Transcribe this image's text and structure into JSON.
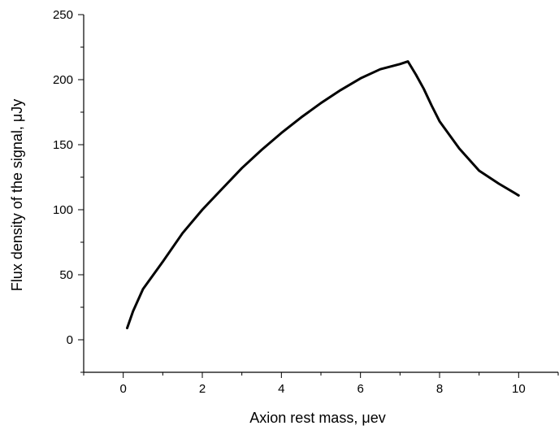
{
  "chart_data": {
    "type": "line",
    "title": "",
    "xlabel": "Axion rest mass, μev",
    "ylabel": "Flux density of the signal, μJy",
    "xlim": [
      -1,
      11
    ],
    "ylim": [
      -25,
      250
    ],
    "x_ticks": [
      0,
      2,
      4,
      6,
      8,
      10
    ],
    "y_ticks": [
      0,
      50,
      100,
      150,
      200,
      250
    ],
    "grid": false,
    "colors": {
      "line": "#000000",
      "axis": "#000000"
    },
    "series": [
      {
        "x": [
          0.1,
          0.25,
          0.5,
          1.0,
          1.5,
          2.0,
          2.5,
          3.0,
          3.5,
          4.0,
          4.5,
          5.0,
          5.5,
          6.0,
          6.5,
          7.0,
          7.2,
          7.4,
          7.6,
          7.8,
          8.0,
          8.5,
          9.0,
          9.5,
          10.0
        ],
        "y": [
          9,
          22,
          39,
          60,
          82,
          100,
          116,
          132,
          146,
          159,
          171,
          182,
          192,
          201,
          208,
          212,
          214,
          204,
          193,
          180,
          168,
          147,
          130,
          120,
          111
        ]
      }
    ]
  }
}
